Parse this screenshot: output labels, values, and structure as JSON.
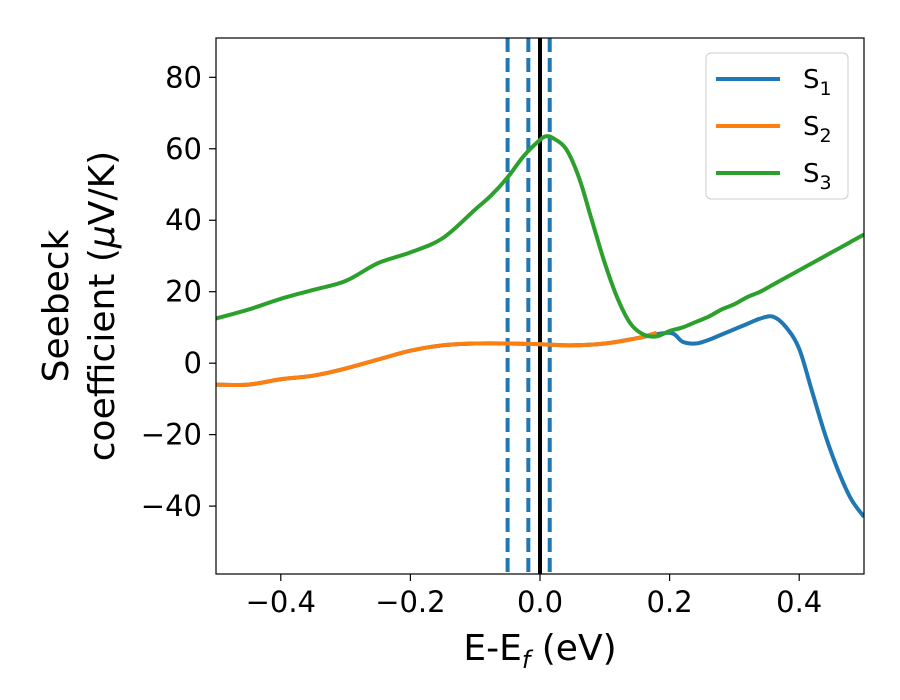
{
  "chart_data": {
    "type": "line",
    "xlabel": "E-E",
    "xlabel_sub": "f",
    "xlabel_unit": " (eV)",
    "ylabel_line1": "Seebeck",
    "ylabel_line2_text": "coefficient  (",
    "ylabel_line2_mu": "μ",
    "ylabel_line2_end": "V/K)",
    "xlim": [
      -0.5,
      0.5
    ],
    "ylim": [
      -59,
      91
    ],
    "xticks": [
      -0.4,
      -0.2,
      0.0,
      0.2,
      0.4
    ],
    "xtick_labels": [
      "−0.4",
      "−0.2",
      "0.0",
      "0.2",
      "0.4"
    ],
    "yticks": [
      -40,
      -20,
      0,
      20,
      40,
      60,
      80
    ],
    "ytick_labels": [
      "−40",
      "−20",
      "0",
      "20",
      "40",
      "60",
      "80"
    ],
    "grid": false,
    "legend_position": "top-right",
    "vlines": [
      {
        "x": 0.0,
        "style": "solid",
        "color": "#000000"
      },
      {
        "x": -0.05,
        "style": "dashed",
        "color": "#1f77b4"
      },
      {
        "x": -0.018,
        "style": "dashed",
        "color": "#1f77b4"
      },
      {
        "x": 0.015,
        "style": "dashed",
        "color": "#1f77b4"
      }
    ],
    "series": [
      {
        "name": "S",
        "name_sub": "1",
        "color": "#1f77b4",
        "x": [
          -0.5,
          -0.45,
          -0.4,
          -0.35,
          -0.3,
          -0.25,
          -0.2,
          -0.15,
          -0.1,
          -0.05,
          0.0,
          0.05,
          0.1,
          0.15,
          0.2,
          0.22,
          0.24,
          0.26,
          0.28,
          0.3,
          0.32,
          0.34,
          0.36,
          0.38,
          0.4,
          0.42,
          0.44,
          0.46,
          0.48,
          0.5
        ],
        "y": [
          -6,
          -6,
          -4.5,
          -3.5,
          -1.5,
          1,
          3.5,
          5,
          5.5,
          5.5,
          5.3,
          5,
          5.5,
          7,
          8.5,
          6,
          5.5,
          6.5,
          8,
          9.5,
          11,
          12.5,
          13,
          10,
          4,
          -8,
          -20,
          -30,
          -38,
          -43
        ]
      },
      {
        "name": "S",
        "name_sub": "2",
        "color": "#ff7f0e",
        "x": [
          -0.5,
          -0.45,
          -0.4,
          -0.35,
          -0.3,
          -0.25,
          -0.2,
          -0.15,
          -0.1,
          -0.05,
          0.0,
          0.05,
          0.1,
          0.15,
          0.18
        ],
        "y": [
          -6,
          -6,
          -4.5,
          -3.5,
          -1.5,
          1,
          3.5,
          5,
          5.5,
          5.5,
          5.3,
          5,
          5.5,
          7,
          8.5
        ]
      },
      {
        "name": "S",
        "name_sub": "3",
        "color": "#2ca02c",
        "x": [
          -0.5,
          -0.45,
          -0.4,
          -0.35,
          -0.3,
          -0.25,
          -0.2,
          -0.15,
          -0.1,
          -0.075,
          -0.05,
          -0.025,
          0.0,
          0.01,
          0.02,
          0.04,
          0.06,
          0.08,
          0.1,
          0.12,
          0.14,
          0.16,
          0.18,
          0.2,
          0.22,
          0.24,
          0.26,
          0.28,
          0.3,
          0.32,
          0.34,
          0.36,
          0.38,
          0.4,
          0.42,
          0.44,
          0.46,
          0.48,
          0.5
        ],
        "y": [
          12.5,
          15,
          18,
          20.5,
          23,
          28,
          31,
          35,
          43,
          47,
          52,
          58,
          62.5,
          63.5,
          63,
          60,
          52,
          40,
          28,
          18,
          11,
          8,
          7.5,
          9,
          10,
          11.5,
          13,
          15,
          16.5,
          18.5,
          20,
          22,
          24,
          26,
          28,
          30,
          32,
          34,
          36
        ]
      }
    ]
  }
}
